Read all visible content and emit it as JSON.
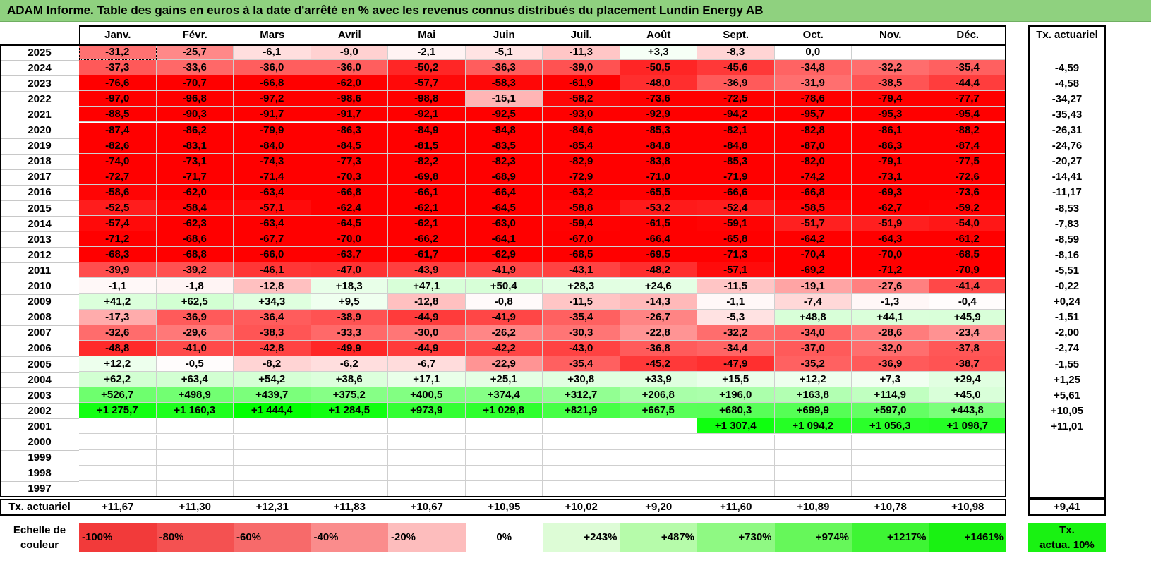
{
  "title": "ADAM Informe. Table des gains en euros à la date d'arrêté en % avec les revenus connus distribués du placement Lundin Energy AB",
  "colors": {
    "title_bg": "#8fd17f",
    "neg_max": "#ff0000",
    "pos_max": "#00ff00",
    "neutral": "#ffffff"
  },
  "chart_data": {
    "type": "heatmap",
    "title": "ADAM Informe. Table des gains en euros à la date d'arrêté en % avec les revenus connus distribués du placement Lundin Energy AB",
    "months": [
      "Janv.",
      "Févr.",
      "Mars",
      "Avril",
      "Mai",
      "Juin",
      "Juil.",
      "Août",
      "Sept.",
      "Oct.",
      "Nov.",
      "Déc."
    ],
    "right_header": "Tx. actuariel",
    "rows": [
      {
        "year": "2025",
        "cells": [
          "-31,2",
          "-25,7",
          "-6,1",
          "-9,0",
          "-2,1",
          "-5,1",
          "-11,3",
          "+3,3",
          "-8,3",
          "0,0",
          "",
          ""
        ],
        "rate": ""
      },
      {
        "year": "2024",
        "cells": [
          "-37,3",
          "-33,6",
          "-36,0",
          "-36,0",
          "-50,2",
          "-36,3",
          "-39,0",
          "-50,5",
          "-45,6",
          "-34,8",
          "-32,2",
          "-35,4"
        ],
        "rate": "-4,59"
      },
      {
        "year": "2023",
        "cells": [
          "-76,6",
          "-70,7",
          "-66,8",
          "-62,0",
          "-57,7",
          "-58,3",
          "-61,9",
          "-48,0",
          "-36,9",
          "-31,9",
          "-38,5",
          "-44,4"
        ],
        "rate": "-4,58"
      },
      {
        "year": "2022",
        "cells": [
          "-97,0",
          "-96,8",
          "-97,2",
          "-98,6",
          "-98,8",
          "-15,1",
          "-58,2",
          "-73,6",
          "-72,5",
          "-78,6",
          "-79,4",
          "-77,7"
        ],
        "rate": "-34,27"
      },
      {
        "year": "2021",
        "cells": [
          "-88,5",
          "-90,3",
          "-91,7",
          "-91,7",
          "-92,1",
          "-92,5",
          "-93,0",
          "-92,9",
          "-94,2",
          "-95,7",
          "-95,3",
          "-95,4"
        ],
        "rate": "-35,43"
      },
      {
        "year": "2020",
        "cells": [
          "-87,4",
          "-86,2",
          "-79,9",
          "-86,3",
          "-84,9",
          "-84,8",
          "-84,6",
          "-85,3",
          "-82,1",
          "-82,8",
          "-86,1",
          "-88,2"
        ],
        "rate": "-26,31"
      },
      {
        "year": "2019",
        "cells": [
          "-82,6",
          "-83,1",
          "-84,0",
          "-84,5",
          "-81,5",
          "-83,5",
          "-85,4",
          "-84,8",
          "-84,8",
          "-87,0",
          "-86,3",
          "-87,4"
        ],
        "rate": "-24,76"
      },
      {
        "year": "2018",
        "cells": [
          "-74,0",
          "-73,1",
          "-74,3",
          "-77,3",
          "-82,2",
          "-82,3",
          "-82,9",
          "-83,8",
          "-85,3",
          "-82,0",
          "-79,1",
          "-77,5"
        ],
        "rate": "-20,27"
      },
      {
        "year": "2017",
        "cells": [
          "-72,7",
          "-71,7",
          "-71,4",
          "-70,3",
          "-69,8",
          "-68,9",
          "-72,9",
          "-71,0",
          "-71,9",
          "-74,2",
          "-73,1",
          "-72,6"
        ],
        "rate": "-14,41"
      },
      {
        "year": "2016",
        "cells": [
          "-58,6",
          "-62,0",
          "-63,4",
          "-66,8",
          "-66,1",
          "-66,4",
          "-63,2",
          "-65,5",
          "-66,6",
          "-66,8",
          "-69,3",
          "-73,6"
        ],
        "rate": "-11,17"
      },
      {
        "year": "2015",
        "cells": [
          "-52,5",
          "-58,4",
          "-57,1",
          "-62,4",
          "-62,1",
          "-64,5",
          "-58,8",
          "-53,2",
          "-52,4",
          "-58,5",
          "-62,7",
          "-59,2"
        ],
        "rate": "-8,53"
      },
      {
        "year": "2014",
        "cells": [
          "-57,4",
          "-62,3",
          "-63,4",
          "-64,5",
          "-62,1",
          "-63,0",
          "-59,4",
          "-61,5",
          "-59,1",
          "-51,7",
          "-51,9",
          "-54,0"
        ],
        "rate": "-7,83"
      },
      {
        "year": "2013",
        "cells": [
          "-71,2",
          "-68,6",
          "-67,7",
          "-70,0",
          "-66,2",
          "-64,1",
          "-67,0",
          "-66,4",
          "-65,8",
          "-64,2",
          "-64,3",
          "-61,2"
        ],
        "rate": "-8,59"
      },
      {
        "year": "2012",
        "cells": [
          "-68,3",
          "-68,8",
          "-66,0",
          "-63,7",
          "-61,7",
          "-62,9",
          "-68,5",
          "-69,5",
          "-71,3",
          "-70,4",
          "-70,0",
          "-68,5"
        ],
        "rate": "-8,16"
      },
      {
        "year": "2011",
        "cells": [
          "-39,9",
          "-39,2",
          "-46,1",
          "-47,0",
          "-43,9",
          "-41,9",
          "-43,1",
          "-48,2",
          "-57,1",
          "-69,2",
          "-71,2",
          "-70,9"
        ],
        "rate": "-5,51"
      },
      {
        "year": "2010",
        "cells": [
          "-1,1",
          "-1,8",
          "-12,8",
          "+18,3",
          "+47,1",
          "+50,4",
          "+28,3",
          "+24,6",
          "-11,5",
          "-19,1",
          "-27,6",
          "-41,4"
        ],
        "rate": "-0,22"
      },
      {
        "year": "2009",
        "cells": [
          "+41,2",
          "+62,5",
          "+34,3",
          "+9,5",
          "-12,8",
          "-0,8",
          "-11,5",
          "-14,3",
          "-1,1",
          "-7,4",
          "-1,3",
          "-0,4"
        ],
        "rate": "+0,24"
      },
      {
        "year": "2008",
        "cells": [
          "-17,3",
          "-36,9",
          "-36,4",
          "-38,9",
          "-44,9",
          "-41,9",
          "-35,4",
          "-26,7",
          "-5,3",
          "+48,8",
          "+44,1",
          "+45,9"
        ],
        "rate": "-1,51"
      },
      {
        "year": "2007",
        "cells": [
          "-32,6",
          "-29,6",
          "-38,3",
          "-33,3",
          "-30,0",
          "-26,2",
          "-30,3",
          "-22,8",
          "-32,2",
          "-34,0",
          "-28,6",
          "-23,4"
        ],
        "rate": "-2,00"
      },
      {
        "year": "2006",
        "cells": [
          "-48,8",
          "-41,0",
          "-42,8",
          "-49,9",
          "-44,9",
          "-42,2",
          "-43,0",
          "-36,8",
          "-34,4",
          "-37,0",
          "-32,0",
          "-37,8"
        ],
        "rate": "-2,74"
      },
      {
        "year": "2005",
        "cells": [
          "+12,2",
          "-0,5",
          "-8,2",
          "-6,2",
          "-6,7",
          "-22,9",
          "-35,4",
          "-45,2",
          "-47,9",
          "-35,2",
          "-36,9",
          "-38,7"
        ],
        "rate": "-1,55"
      },
      {
        "year": "2004",
        "cells": [
          "+62,2",
          "+63,4",
          "+54,2",
          "+38,6",
          "+17,1",
          "+25,1",
          "+30,8",
          "+33,9",
          "+15,5",
          "+12,2",
          "+7,3",
          "+29,4"
        ],
        "rate": "+1,25"
      },
      {
        "year": "2003",
        "cells": [
          "+526,7",
          "+498,9",
          "+439,7",
          "+375,2",
          "+400,5",
          "+374,4",
          "+312,7",
          "+206,8",
          "+196,0",
          "+163,8",
          "+114,9",
          "+45,0"
        ],
        "rate": "+5,61"
      },
      {
        "year": "2002",
        "cells": [
          "+1 275,7",
          "+1 160,3",
          "+1 444,4",
          "+1 284,5",
          "+973,9",
          "+1 029,8",
          "+821,9",
          "+667,5",
          "+680,3",
          "+699,9",
          "+597,0",
          "+443,8"
        ],
        "rate": "+10,05"
      },
      {
        "year": "2001",
        "cells": [
          "",
          "",
          "",
          "",
          "",
          "",
          "",
          "",
          "+1 307,4",
          "+1 094,2",
          "+1 056,3",
          "+1 098,7"
        ],
        "rate": "+11,01"
      },
      {
        "year": "2000",
        "cells": [
          "",
          "",
          "",
          "",
          "",
          "",
          "",
          "",
          "",
          "",
          "",
          ""
        ],
        "rate": ""
      },
      {
        "year": "1999",
        "cells": [
          "",
          "",
          "",
          "",
          "",
          "",
          "",
          "",
          "",
          "",
          "",
          ""
        ],
        "rate": ""
      },
      {
        "year": "1998",
        "cells": [
          "",
          "",
          "",
          "",
          "",
          "",
          "",
          "",
          "",
          "",
          "",
          ""
        ],
        "rate": ""
      },
      {
        "year": "1997",
        "cells": [
          "",
          "",
          "",
          "",
          "",
          "",
          "",
          "",
          "",
          "",
          "",
          ""
        ],
        "rate": ""
      }
    ],
    "footer": {
      "label": "Tx. actuariel",
      "cells": [
        "+11,67",
        "+11,30",
        "+12,31",
        "+11,83",
        "+10,67",
        "+10,95",
        "+10,02",
        "+9,20",
        "+11,60",
        "+10,89",
        "+10,78",
        "+10,98"
      ],
      "rate": "+9,41"
    },
    "color_scale": {
      "label_line1": "Echelle de",
      "label_line2": "couleur",
      "items": [
        {
          "text": "-100%",
          "color": "#f23a3a",
          "align": "left"
        },
        {
          "text": "-80%",
          "color": "#f45151",
          "align": "left"
        },
        {
          "text": "-60%",
          "color": "#f76a6a",
          "align": "left"
        },
        {
          "text": "-40%",
          "color": "#fa8c8c",
          "align": "left"
        },
        {
          "text": "-20%",
          "color": "#fdbdbd",
          "align": "left"
        },
        {
          "text": "0%",
          "color": "#ffffff",
          "align": "center"
        },
        {
          "text": "+243%",
          "color": "#ddfcd6",
          "align": "right"
        },
        {
          "text": "+487%",
          "color": "#b6fbaa",
          "align": "right"
        },
        {
          "text": "+730%",
          "color": "#8ff983",
          "align": "right"
        },
        {
          "text": "+974%",
          "color": "#66f75a",
          "align": "right"
        },
        {
          "text": "+1217%",
          "color": "#3ef534",
          "align": "right"
        },
        {
          "text": "+1461%",
          "color": "#19f212",
          "align": "right"
        }
      ],
      "right_line1": "Tx.",
      "right_line2": "actua. 10%",
      "right_color": "#19f212"
    }
  }
}
